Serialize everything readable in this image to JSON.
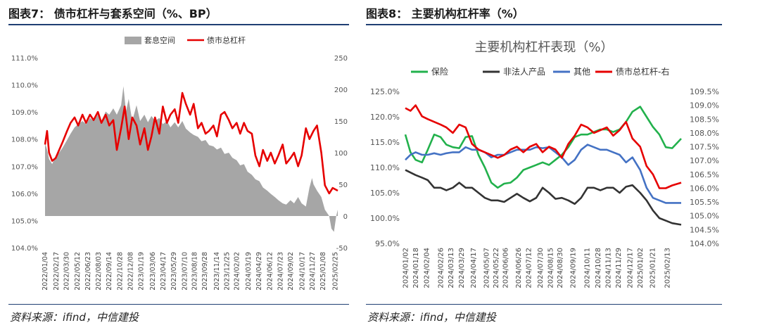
{
  "left": {
    "figure_title": "图表7：  债市杠杆与套系空间（%、BP）",
    "source": "资料来源：ifind，中信建投",
    "colors": {
      "area": "#a6a6a6",
      "line": "#e60000"
    },
    "chart_data": {
      "type": "area",
      "title": "",
      "legend": [
        {
          "name": "套息空间",
          "kind": "area"
        },
        {
          "name": "债市总杠杆",
          "kind": "line"
        }
      ],
      "legend_position": "top",
      "y_left": {
        "min": 104.0,
        "max": 111.0,
        "ticks": [
          "104.0%",
          "105.0%",
          "106.0%",
          "107.0%",
          "108.0%",
          "109.0%",
          "110.0%",
          "111.0%"
        ]
      },
      "y_right": {
        "min": -50,
        "max": 250,
        "ticks": [
          "-50",
          "0",
          "50",
          "100",
          "150",
          "200",
          "250"
        ]
      },
      "x_range": [
        "2022-01-04",
        "2025-03-07"
      ],
      "x_ticks": [
        "2022/01/04",
        "2022/02/17",
        "2022/03/30",
        "2022/05/12",
        "2022/06/23",
        "2022/08/03",
        "2022/09/14",
        "2022/10/28",
        "2022/12/08",
        "2023/01/19",
        "2023/03/06",
        "2023/04/17",
        "2023/05/29",
        "2023/07/10",
        "2023/08/18",
        "2023/09/28",
        "2023/11/14",
        "2023/12/25",
        "2024/02/02",
        "2024/03/19",
        "2024/04/29",
        "2024/06/12",
        "2024/07/23",
        "2024/09/02",
        "2024/10/17",
        "2024/11/27",
        "2025/01/08",
        "2025/02/25"
      ],
      "grid": false,
      "series": [
        {
          "name": "套息空间",
          "axis": "right",
          "x": [
            "2022-01-04",
            "2022-01-12",
            "2022-01-20",
            "2022-02-01",
            "2022-02-15",
            "2022-03-01",
            "2022-03-15",
            "2022-04-01",
            "2022-04-15",
            "2022-05-01",
            "2022-05-15",
            "2022-06-01",
            "2022-06-15",
            "2022-07-01",
            "2022-07-15",
            "2022-08-01",
            "2022-08-15",
            "2022-09-01",
            "2022-09-15",
            "2022-10-01",
            "2022-10-15",
            "2022-11-01",
            "2022-11-10",
            "2022-11-20",
            "2022-12-01",
            "2022-12-15",
            "2023-01-01",
            "2023-01-15",
            "2023-02-01",
            "2023-02-15",
            "2023-03-01",
            "2023-03-15",
            "2023-04-01",
            "2023-04-15",
            "2023-05-01",
            "2023-05-15",
            "2023-06-01",
            "2023-06-15",
            "2023-07-01",
            "2023-07-15",
            "2023-08-01",
            "2023-08-15",
            "2023-09-01",
            "2023-09-15",
            "2023-10-01",
            "2023-10-15",
            "2023-11-01",
            "2023-11-15",
            "2023-12-01",
            "2023-12-15",
            "2024-01-01",
            "2024-01-15",
            "2024-02-01",
            "2024-02-15",
            "2024-03-01",
            "2024-03-15",
            "2024-04-01",
            "2024-04-15",
            "2024-05-01",
            "2024-05-15",
            "2024-06-01",
            "2024-06-15",
            "2024-07-01",
            "2024-07-15",
            "2024-08-01",
            "2024-08-15",
            "2024-09-01",
            "2024-09-15",
            "2024-10-01",
            "2024-10-15",
            "2024-11-01",
            "2024-11-15",
            "2024-11-25",
            "2024-12-01",
            "2024-12-15",
            "2025-01-01",
            "2025-01-15",
            "2025-02-01",
            "2025-02-10",
            "2025-02-20",
            "2025-03-01",
            "2025-03-07"
          ],
          "y": [
            115,
            105,
            90,
            82,
            95,
            100,
            108,
            120,
            130,
            140,
            145,
            150,
            145,
            155,
            150,
            160,
            150,
            165,
            160,
            170,
            160,
            175,
            205,
            165,
            185,
            150,
            175,
            150,
            160,
            148,
            158,
            150,
            155,
            145,
            150,
            140,
            148,
            140,
            150,
            138,
            132,
            128,
            125,
            118,
            120,
            112,
            110,
            105,
            108,
            98,
            100,
            92,
            88,
            80,
            82,
            70,
            65,
            58,
            55,
            45,
            40,
            35,
            30,
            25,
            20,
            18,
            25,
            20,
            30,
            20,
            15,
            45,
            60,
            50,
            40,
            30,
            10,
            0,
            -20,
            -25,
            0,
            10
          ]
        },
        {
          "name": "债市总杠杆",
          "axis": "left",
          "x": [
            "2022-01-04",
            "2022-01-12",
            "2022-01-20",
            "2022-02-01",
            "2022-02-15",
            "2022-03-01",
            "2022-03-15",
            "2022-04-01",
            "2022-04-15",
            "2022-05-01",
            "2022-05-15",
            "2022-06-01",
            "2022-06-15",
            "2022-07-01",
            "2022-07-15",
            "2022-08-01",
            "2022-08-15",
            "2022-09-01",
            "2022-09-15",
            "2022-10-01",
            "2022-10-15",
            "2022-11-01",
            "2022-11-15",
            "2022-12-01",
            "2022-12-15",
            "2023-01-01",
            "2023-01-15",
            "2023-02-01",
            "2023-02-15",
            "2023-03-01",
            "2023-03-15",
            "2023-04-01",
            "2023-04-15",
            "2023-05-01",
            "2023-05-15",
            "2023-06-01",
            "2023-06-15",
            "2023-07-01",
            "2023-07-15",
            "2023-08-01",
            "2023-08-15",
            "2023-09-01",
            "2023-09-15",
            "2023-10-01",
            "2023-10-15",
            "2023-11-01",
            "2023-11-15",
            "2023-12-01",
            "2023-12-15",
            "2024-01-01",
            "2024-01-15",
            "2024-02-01",
            "2024-02-15",
            "2024-03-01",
            "2024-03-15",
            "2024-04-01",
            "2024-04-15",
            "2024-05-01",
            "2024-05-15",
            "2024-06-01",
            "2024-06-15",
            "2024-07-01",
            "2024-07-15",
            "2024-08-01",
            "2024-08-15",
            "2024-09-01",
            "2024-09-15",
            "2024-10-01",
            "2024-10-15",
            "2024-11-01",
            "2024-11-15",
            "2024-12-01",
            "2024-12-15",
            "2025-01-01",
            "2025-01-15",
            "2025-02-01",
            "2025-02-15",
            "2025-03-07"
          ],
          "y": [
            107.8,
            108.3,
            107.5,
            107.2,
            107.3,
            107.6,
            107.9,
            108.3,
            108.6,
            108.8,
            108.5,
            108.9,
            108.6,
            108.9,
            108.7,
            109.0,
            108.6,
            108.9,
            108.5,
            108.7,
            107.6,
            108.4,
            109.2,
            108.0,
            108.8,
            108.5,
            107.8,
            108.4,
            107.6,
            108.1,
            108.8,
            108.2,
            109.2,
            108.6,
            108.9,
            109.1,
            108.6,
            109.7,
            109.3,
            108.9,
            109.3,
            108.4,
            108.6,
            108.2,
            108.3,
            108.5,
            108.1,
            108.9,
            109.0,
            108.7,
            108.4,
            108.6,
            108.2,
            108.6,
            108.3,
            108.2,
            107.4,
            107.0,
            107.6,
            107.2,
            107.5,
            107.1,
            107.4,
            107.8,
            107.1,
            107.3,
            107.5,
            107.0,
            107.4,
            108.4,
            108.0,
            108.3,
            108.5,
            107.5,
            106.3,
            106.0,
            106.2,
            106.1
          ]
        }
      ]
    }
  },
  "right": {
    "figure_title": "图表8：  主要机构杠杆率（%）",
    "source": "资料来源：ifind，中信建投",
    "colors": {
      "保险": "#22b14c",
      "非法人产品": "#333333",
      "其他": "#4472c4",
      "债市总杠杆-右": "#e60000"
    },
    "chart_data": {
      "type": "line",
      "title": "主要机构杠杆表现（%）",
      "legend_position": "top",
      "y_left": {
        "min": 95.0,
        "max": 125.0,
        "ticks": [
          "95.0%",
          "100.0%",
          "105.0%",
          "110.0%",
          "115.0%",
          "120.0%",
          "125.0%"
        ]
      },
      "y_right": {
        "min": 104.0,
        "max": 109.5,
        "ticks": [
          "104.0%",
          "104.5%",
          "105.0%",
          "105.5%",
          "106.0%",
          "106.5%",
          "107.0%",
          "107.5%",
          "108.0%",
          "108.5%",
          "109.0%",
          "109.5%"
        ]
      },
      "x_range": [
        "2024-01-02",
        "2025-03-07"
      ],
      "x_ticks": [
        "2024/01/02",
        "2024/01/18",
        "2024/02/04",
        "2024/02/26",
        "2024/03/13",
        "2024/03/29",
        "2024/04/17",
        "2024/05/07",
        "2024/05/22",
        "2024/06/06",
        "2024/06/26",
        "2024/07/12",
        "2024/07/30",
        "2024/08/15",
        "2024/08/30",
        "2024/09/19",
        "2024/10/11",
        "2024/10/28",
        "2024/11/13",
        "2024/11/29",
        "2024/12/17",
        "2025/01/02",
        "2025/01/21",
        "2025/02/13"
      ],
      "grid": false,
      "series": [
        {
          "name": "保险",
          "axis": "left",
          "x": [
            "2024-01-02",
            "2024-01-10",
            "2024-01-18",
            "2024-01-28",
            "2024-02-06",
            "2024-02-16",
            "2024-02-26",
            "2024-03-06",
            "2024-03-16",
            "2024-03-26",
            "2024-04-05",
            "2024-04-15",
            "2024-04-25",
            "2024-05-05",
            "2024-05-15",
            "2024-05-25",
            "2024-06-04",
            "2024-06-14",
            "2024-06-24",
            "2024-07-04",
            "2024-07-14",
            "2024-07-24",
            "2024-08-03",
            "2024-08-13",
            "2024-08-23",
            "2024-09-02",
            "2024-09-12",
            "2024-09-22",
            "2024-10-02",
            "2024-10-12",
            "2024-10-22",
            "2024-11-01",
            "2024-11-11",
            "2024-11-21",
            "2024-12-01",
            "2024-12-11",
            "2024-12-21",
            "2025-01-02",
            "2025-01-12",
            "2025-01-22",
            "2025-02-01",
            "2025-02-11",
            "2025-02-21",
            "2025-03-07"
          ],
          "y": [
            116.5,
            113.0,
            111.5,
            111.0,
            113.5,
            116.5,
            116.0,
            114.5,
            114.0,
            113.8,
            116.0,
            116.2,
            112.5,
            110.0,
            107.0,
            106.0,
            106.8,
            107.0,
            108.0,
            109.5,
            110.0,
            110.5,
            111.0,
            110.5,
            111.5,
            112.5,
            114.0,
            116.0,
            116.5,
            116.5,
            117.0,
            117.5,
            117.5,
            117.0,
            117.5,
            119.0,
            121.0,
            122.0,
            120.0,
            118.0,
            116.5,
            114.0,
            113.8,
            115.7
          ]
        },
        {
          "name": "非法人产品",
          "axis": "left",
          "x": [
            "2024-01-02",
            "2024-01-10",
            "2024-01-18",
            "2024-01-28",
            "2024-02-06",
            "2024-02-16",
            "2024-02-26",
            "2024-03-06",
            "2024-03-16",
            "2024-03-26",
            "2024-04-05",
            "2024-04-15",
            "2024-04-25",
            "2024-05-05",
            "2024-05-15",
            "2024-05-25",
            "2024-06-04",
            "2024-06-14",
            "2024-06-24",
            "2024-07-04",
            "2024-07-14",
            "2024-07-24",
            "2024-08-03",
            "2024-08-13",
            "2024-08-23",
            "2024-09-02",
            "2024-09-12",
            "2024-09-22",
            "2024-10-02",
            "2024-10-12",
            "2024-10-22",
            "2024-11-01",
            "2024-11-11",
            "2024-11-21",
            "2024-12-01",
            "2024-12-11",
            "2024-12-21",
            "2025-01-02",
            "2025-01-12",
            "2025-01-22",
            "2025-02-01",
            "2025-02-11",
            "2025-02-21",
            "2025-03-07"
          ],
          "y": [
            109.5,
            109.0,
            108.5,
            108.0,
            107.5,
            106.0,
            106.0,
            105.5,
            106.0,
            107.0,
            106.0,
            106.0,
            105.0,
            104.0,
            103.5,
            103.5,
            103.2,
            104.0,
            104.8,
            104.0,
            103.3,
            104.0,
            106.0,
            105.0,
            103.8,
            104.0,
            103.5,
            102.8,
            104.0,
            106.0,
            106.0,
            105.5,
            106.0,
            106.0,
            105.0,
            106.2,
            106.5,
            105.0,
            103.5,
            101.5,
            100.0,
            99.5,
            99.0,
            98.7
          ]
        },
        {
          "name": "其他",
          "axis": "left",
          "x": [
            "2024-01-02",
            "2024-01-10",
            "2024-01-18",
            "2024-01-28",
            "2024-02-06",
            "2024-02-16",
            "2024-02-26",
            "2024-03-06",
            "2024-03-16",
            "2024-03-26",
            "2024-04-05",
            "2024-04-15",
            "2024-04-25",
            "2024-05-05",
            "2024-05-15",
            "2024-05-25",
            "2024-06-04",
            "2024-06-14",
            "2024-06-24",
            "2024-07-04",
            "2024-07-14",
            "2024-07-24",
            "2024-08-03",
            "2024-08-13",
            "2024-08-23",
            "2024-09-02",
            "2024-09-12",
            "2024-09-22",
            "2024-10-02",
            "2024-10-12",
            "2024-10-22",
            "2024-11-01",
            "2024-11-11",
            "2024-11-21",
            "2024-12-01",
            "2024-12-11",
            "2024-12-21",
            "2025-01-02",
            "2025-01-12",
            "2025-01-22",
            "2025-02-01",
            "2025-02-11",
            "2025-02-21",
            "2025-03-07"
          ],
          "y": [
            111.5,
            112.5,
            113.0,
            112.5,
            112.5,
            112.8,
            112.5,
            112.8,
            113.0,
            113.0,
            114.0,
            113.5,
            113.5,
            113.0,
            112.0,
            112.5,
            112.5,
            113.0,
            113.5,
            113.5,
            113.5,
            114.0,
            113.8,
            114.0,
            113.0,
            112.0,
            110.5,
            111.5,
            113.5,
            114.5,
            114.0,
            113.5,
            113.5,
            113.0,
            112.5,
            111.0,
            112.0,
            109.5,
            106.0,
            104.0,
            103.5,
            103.0,
            103.0,
            103.0
          ]
        },
        {
          "name": "债市总杠杆-右",
          "axis": "right",
          "x": [
            "2024-01-02",
            "2024-01-10",
            "2024-01-18",
            "2024-01-28",
            "2024-02-06",
            "2024-02-16",
            "2024-02-26",
            "2024-03-06",
            "2024-03-16",
            "2024-03-26",
            "2024-04-05",
            "2024-04-15",
            "2024-04-25",
            "2024-05-05",
            "2024-05-15",
            "2024-05-25",
            "2024-06-04",
            "2024-06-14",
            "2024-06-24",
            "2024-07-04",
            "2024-07-14",
            "2024-07-24",
            "2024-08-03",
            "2024-08-13",
            "2024-08-23",
            "2024-09-02",
            "2024-09-12",
            "2024-09-22",
            "2024-10-02",
            "2024-10-12",
            "2024-10-22",
            "2024-11-01",
            "2024-11-11",
            "2024-11-21",
            "2024-12-01",
            "2024-12-11",
            "2024-12-21",
            "2025-01-02",
            "2025-01-12",
            "2025-01-22",
            "2025-02-01",
            "2025-02-11",
            "2025-02-21",
            "2025-03-07"
          ],
          "y": [
            108.9,
            108.8,
            109.0,
            108.6,
            108.5,
            108.4,
            108.3,
            108.2,
            108.0,
            108.3,
            108.2,
            107.6,
            107.4,
            107.3,
            107.2,
            107.1,
            107.2,
            107.4,
            107.5,
            107.3,
            107.5,
            107.6,
            107.3,
            107.5,
            107.4,
            107.1,
            107.6,
            107.9,
            108.3,
            108.2,
            108.0,
            108.1,
            108.2,
            107.9,
            108.1,
            108.4,
            107.8,
            107.5,
            106.8,
            106.5,
            106.0,
            106.0,
            106.1,
            106.2
          ]
        }
      ]
    }
  }
}
